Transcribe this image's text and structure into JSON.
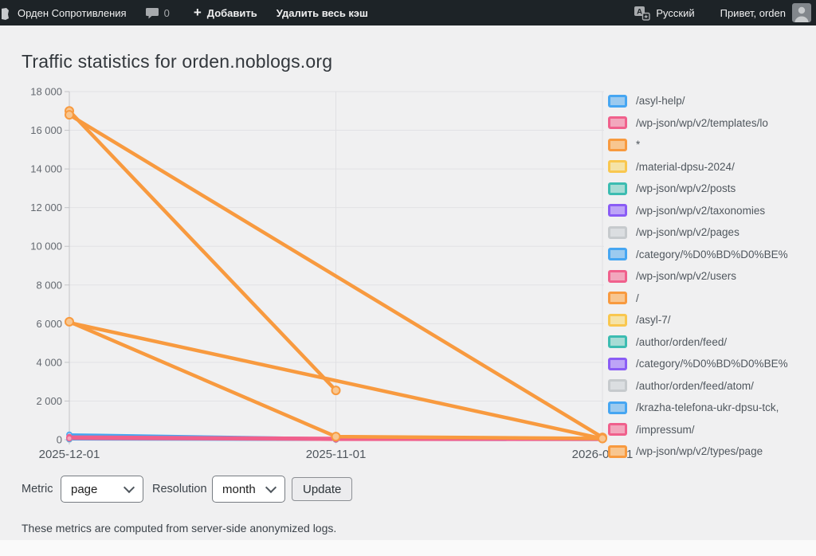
{
  "admin_bar": {
    "site_name": "Орден Сопротивления",
    "comments_count": "0",
    "new_label": "Добавить",
    "clear_cache_label": "Удалить весь кэш",
    "language_label": "Русский",
    "greeting": "Привет, orden"
  },
  "page": {
    "title": "Traffic statistics for orden.noblogs.org",
    "footnote": "These metrics are computed from server-side anonymized logs."
  },
  "controls": {
    "metric_label": "Metric",
    "metric_value": "page",
    "resolution_label": "Resolution",
    "resolution_value": "month",
    "update_label": "Update"
  },
  "palette": {
    "blue": {
      "stroke": "#46a6f2",
      "fill": "#9ccaef"
    },
    "pink": {
      "stroke": "#f0608c",
      "fill": "#f2a7bd"
    },
    "orange": {
      "stroke": "#f89a3f",
      "fill": "#f8c690"
    },
    "yellow": {
      "stroke": "#f9c74f",
      "fill": "#f5e3a7"
    },
    "teal": {
      "stroke": "#3cbcb1",
      "fill": "#a7dcd5"
    },
    "purple": {
      "stroke": "#8a5cf5",
      "fill": "#bda4f7"
    },
    "gray": {
      "stroke": "#c6cacd",
      "fill": "#dbdee1"
    }
  },
  "chart_data": {
    "type": "line",
    "title": "Traffic statistics for orden.noblogs.org",
    "x_labels": [
      "2025-12-01",
      "2025-11-01",
      "2026-01-01"
    ],
    "xlabel": "",
    "ylabel": "",
    "ylim": [
      0,
      18000
    ],
    "ytick_step": 2000,
    "grid": true,
    "legend_position": "right",
    "series": [
      {
        "label": "/asyl-help/",
        "color": "blue",
        "values": [
          260,
          50,
          40
        ]
      },
      {
        "label": "/wp-json/wp/v2/templates/lo",
        "color": "pink",
        "values": [
          140,
          70,
          60
        ]
      },
      {
        "label": "*",
        "color": "orange",
        "values": [
          17000,
          2550,
          null
        ]
      },
      {
        "label": "/material-dpsu-2024/",
        "color": "yellow",
        "values": [
          20,
          6,
          4
        ]
      },
      {
        "label": "/wp-json/wp/v2/posts",
        "color": "teal",
        "values": [
          30,
          10,
          8
        ]
      },
      {
        "label": "/wp-json/wp/v2/taxonomies",
        "color": "purple",
        "values": [
          60,
          20,
          15
        ]
      },
      {
        "label": "/wp-json/wp/v2/pages",
        "color": "gray",
        "values": [
          15,
          5,
          3
        ]
      },
      {
        "label": "/category/%D0%BD%D0%BE%",
        "color": "blue",
        "values": [
          35,
          12,
          10
        ]
      },
      {
        "label": "/wp-json/wp/v2/users",
        "color": "pink",
        "values": [
          90,
          30,
          25
        ]
      },
      {
        "label": "/",
        "color": "orange",
        "values": [
          16800,
          null,
          120
        ]
      },
      {
        "label": "/asyl-7/",
        "color": "yellow",
        "values": [
          18,
          6,
          3
        ]
      },
      {
        "label": "/author/orden/feed/",
        "color": "teal",
        "values": [
          12,
          4,
          3
        ]
      },
      {
        "label": "/category/%D0%BD%D0%BE%",
        "color": "purple",
        "values": [
          40,
          10,
          8
        ]
      },
      {
        "label": "/author/orden/feed/atom/",
        "color": "gray",
        "values": [
          8,
          3,
          2
        ]
      },
      {
        "label": "/krazha-telefona-ukr-dpsu-tck,",
        "color": "blue",
        "values": [
          30,
          9,
          7
        ]
      },
      {
        "label": "/impressum/",
        "color": "pink",
        "values": [
          70,
          18,
          14
        ]
      },
      {
        "label": "/wp-json/wp/v2/types/page",
        "color": "orange",
        "values": [
          6100,
          160,
          60
        ]
      }
    ],
    "extra_lines": [
      {
        "color": "orange",
        "points": [
          [
            0,
            6050
          ],
          [
            2,
            55
          ]
        ]
      }
    ]
  }
}
